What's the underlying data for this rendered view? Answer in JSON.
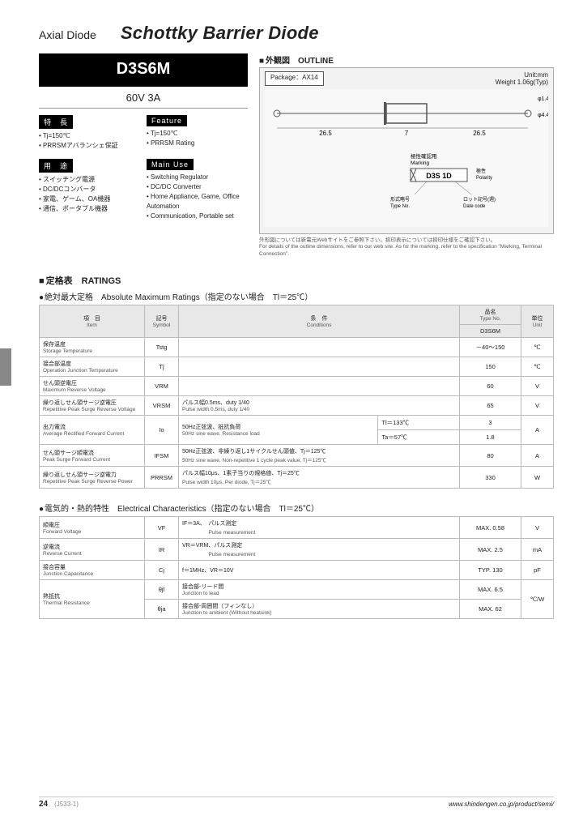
{
  "header": {
    "category": "Axial Diode",
    "title": "Schottky Barrier Diode"
  },
  "part": {
    "number": "D3S6M",
    "spec": "60V 3A"
  },
  "features": {
    "label_jp": "特　長",
    "label_en": "Feature",
    "jp": [
      "Tj=150℃",
      "PRRSMアバランシェ保証"
    ],
    "en": [
      "Tj=150℃",
      "PRRSM Rating"
    ]
  },
  "uses": {
    "label_jp": "用　途",
    "label_en": "Main Use",
    "jp": [
      "スイッチング電源",
      "DC/DCコンバータ",
      "家電、ゲーム、OA機器",
      "通信、ポータブル機器"
    ],
    "en": [
      "Switching Regulator",
      "DC/DC Converter",
      "Home Appliance, Game, Office Automation",
      "Communication, Portable set"
    ]
  },
  "outline": {
    "header": "外観図　OUTLINE",
    "package_label": "Package：AX14",
    "unit": "Unit:mm",
    "weight": "Weight 1.06g(Typ)",
    "dims": {
      "lead": "26.5",
      "body": "7",
      "lead_dia": "φ1.4",
      "body_dia": "φ4.4"
    },
    "marking": {
      "note_jp": "極性確認用",
      "note_en": "Marking",
      "text": "D3S 1D",
      "polarity": "Polarity",
      "type_jp": "形式略号",
      "type_en": "Type No.",
      "date_jp": "ロット記号(週)",
      "date_en": "Date code"
    },
    "footnote_jp": "外形図については新電元Webサイトをご参照下さい。捺印表示については捺印仕様をご確認下さい。",
    "footnote_en": "For details of the outline dimensions, refer to our web site. As for the marking, refer to the specification \"Marking, Terminal Connection\"."
  },
  "ratings": {
    "section": "定格表　RATINGS",
    "abs_title": "絶対最大定格　Absolute Maximum Ratings（指定のない場合　Tl＝25℃）",
    "head": {
      "item": "項　目\nItem",
      "symbol": "記号\nSymbol",
      "cond": "条　件\nConditions",
      "type": "品名\nType No.",
      "part": "D3S6M",
      "unit": "単位\nUnit"
    },
    "rows": [
      {
        "jp": "保存温度",
        "en": "Storage Temperature",
        "sym": "Tstg",
        "cond": "",
        "val": "－40～150",
        "unit": "℃"
      },
      {
        "jp": "接合部温度",
        "en": "Operation Junction Temperature",
        "sym": "Tj",
        "cond": "",
        "val": "150",
        "unit": "℃"
      },
      {
        "jp": "せん頭逆電圧",
        "en": "Maximum Reverse Voltage",
        "sym": "VRM",
        "cond": "",
        "val": "60",
        "unit": "V"
      },
      {
        "jp": "繰り返しせん頭サージ逆電圧",
        "en": "Repetitive Peak Surge Reverse Voltage",
        "sym": "VRSM",
        "cond": "パルス幅0.5ms、duty 1/40\nPulse width 0.5ms, duty 1/40",
        "val": "65",
        "unit": "V"
      }
    ],
    "io_row": {
      "jp": "出力電流",
      "en": "Average Rectified Forward Current",
      "sym": "Io",
      "cond": "50Hz正弦波、抵抗負荷\n50Hz sine wave, Resistance load",
      "sub1": {
        "c": "Tl＝133℃",
        "v": "3"
      },
      "sub2": {
        "c": "Ta＝57℃",
        "v": "1.8"
      },
      "unit": "A"
    },
    "rows2": [
      {
        "jp": "せん頭サージ順電流",
        "en": "Peak Surge Forward Current",
        "sym": "IFSM",
        "cond": "50Hz正弦波、非繰り返し1サイクルせん頭値、Tj＝125℃\n50Hz sine wave, Non-repetitive 1 cycle peak value, Tj＝125℃",
        "val": "80",
        "unit": "A"
      },
      {
        "jp": "繰り返しせん頭サージ逆電力",
        "en": "Repetitive Peak Surge Reverse Power",
        "sym": "PRRSM",
        "cond": "パルス幅10μs、1素子当りの規格値、Tj＝25℃\nPulse width 10μs, Per diode, Tj＝25℃",
        "val": "330",
        "unit": "W"
      }
    ]
  },
  "elec": {
    "title": "電気的・熱的特性　Electrical Characteristics（指定のない場合　Tl＝25℃）",
    "rows": [
      {
        "jp": "順電圧",
        "en": "Forward Voltage",
        "sym": "VF",
        "cond": "IF＝3A、　パルス測定\n　　　　　Pulse measurement",
        "val": "MAX. 0.58",
        "unit": "V"
      },
      {
        "jp": "逆電流",
        "en": "Reverse Current",
        "sym": "IR",
        "cond": "VR＝VRM、パルス測定\n　　　　　Pulse measurement",
        "val": "MAX. 2.5",
        "unit": "mA"
      },
      {
        "jp": "接合容量",
        "en": "Junction Capacitance",
        "sym": "Cj",
        "cond": "f＝1MHz、VR＝10V",
        "val": "TYP. 130",
        "unit": "pF"
      }
    ],
    "thermal": {
      "jp": "熱抵抗",
      "en": "Thermal Resistance",
      "r1": {
        "sym": "θjl",
        "cond": "接合部-リード間\nJunction to lead",
        "val": "MAX. 6.5"
      },
      "r2": {
        "sym": "θja",
        "cond": "接合部-周囲間（フィンなし）\nJunction to ambient (Without heatsink)",
        "val": "MAX. 62"
      },
      "unit": "℃/W"
    }
  },
  "footer": {
    "page": "24",
    "code": "(J533-1)",
    "url": "www.shindengen.co.jp/product/semi/"
  },
  "colors": {
    "black": "#000000",
    "grey_bg": "#f2f2f2",
    "border": "#bbbbbb",
    "head_bg": "#e8e8e8",
    "tab": "#888888"
  }
}
